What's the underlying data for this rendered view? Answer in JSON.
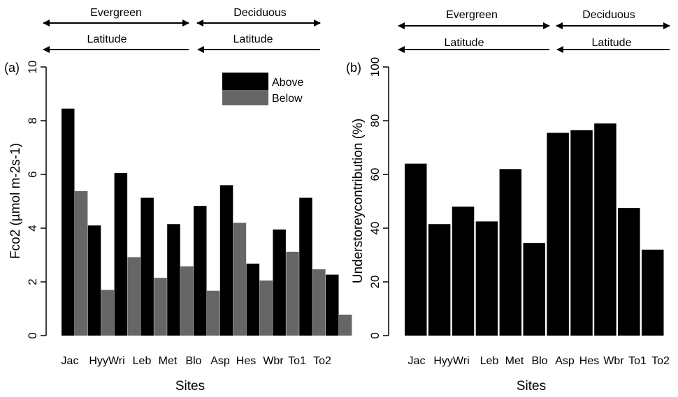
{
  "chart_data": [
    {
      "type": "bar",
      "panel_tag": "(a)",
      "title": "",
      "xlabel": "Sites",
      "ylabel": "Fco2 (µmol m-2s-1)",
      "ylim": [
        0,
        10
      ],
      "yticks": [
        "0",
        "2",
        "4",
        "6",
        "8",
        "10"
      ],
      "categories": [
        "Jac",
        "Hyy",
        "Wri",
        "Leb",
        "Met",
        "Blo",
        "Asp",
        "Hes",
        "Wbr",
        "To1",
        "To2"
      ],
      "category_labels": [
        "Jac",
        "HyyWri",
        "Leb",
        "Met",
        "Blo",
        "Asp",
        "Hes",
        "Wbr",
        "To1",
        "To2"
      ],
      "series": [
        {
          "name": "Above",
          "color": "#000000",
          "values": [
            8.45,
            4.1,
            6.05,
            5.13,
            4.15,
            4.83,
            5.6,
            2.68,
            3.95,
            5.13,
            2.27
          ]
        },
        {
          "name": "Below",
          "color": "#666666",
          "values": [
            5.38,
            1.7,
            2.92,
            2.15,
            2.58,
            1.67,
            4.2,
            2.05,
            3.12,
            2.47,
            0.78
          ]
        }
      ],
      "legend_placement": "top-right",
      "grid": false,
      "groups": [
        {
          "label": "Evergreen",
          "arrow": "double"
        },
        {
          "label": "Deciduous",
          "arrow": "double"
        }
      ],
      "gradient_labels": [
        "Latitude",
        "Latitude"
      ]
    },
    {
      "type": "bar",
      "panel_tag": "(b)",
      "title": "",
      "xlabel": "Sites",
      "ylabel": "Understoreycontribution (%)",
      "ylim": [
        0,
        100
      ],
      "yticks": [
        "0",
        "20",
        "40",
        "60",
        "80",
        "100"
      ],
      "categories": [
        "Jac",
        "Hyy",
        "Wri",
        "Leb",
        "Met",
        "Blo",
        "Asp",
        "Hes",
        "Wbr",
        "To1",
        "To2"
      ],
      "category_labels": [
        "Jac",
        "HyyWri",
        "Leb",
        "Met",
        "Blo",
        "Asp",
        "Hes",
        "Wbr",
        "To1",
        "To2"
      ],
      "series": [
        {
          "color": "#000000",
          "values": [
            64,
            41.5,
            48,
            42.5,
            62,
            34.5,
            75.5,
            76.5,
            79,
            47.5,
            32
          ]
        }
      ],
      "grid": false,
      "groups": [
        {
          "label": "Evergreen",
          "arrow": "double"
        },
        {
          "label": "Deciduous",
          "arrow": "double"
        }
      ],
      "gradient_labels": [
        "Latitude",
        "Latitude"
      ]
    }
  ]
}
